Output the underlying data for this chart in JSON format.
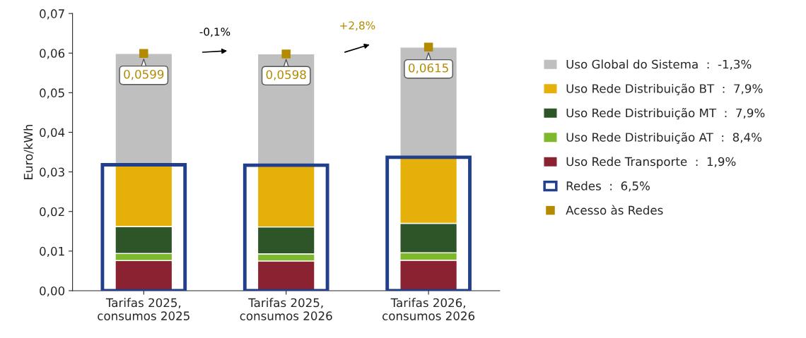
{
  "chart_data": [
    {
      "type": "bar",
      "stacked": true,
      "ylabel": "Euro/kWh",
      "categories": [
        "Tarifas 2025,\nconsumos 2025",
        "Tarifas 2025,\nconsumos 2026",
        "Tarifas 2026,\nconsumos 2026"
      ],
      "series": [
        {
          "name": "Uso Rede Transporte  :  1,9%",
          "color": "#8a2232",
          "values": [
            0.0076,
            0.0075,
            0.0077
          ]
        },
        {
          "name": "Uso Rede Distribuição AT  :  8,4%",
          "color": "#7eb82c",
          "values": [
            0.0018,
            0.0018,
            0.0019
          ]
        },
        {
          "name": "Uso Rede Distribuição MT  :  7,9%",
          "color": "#2d5527",
          "values": [
            0.0068,
            0.0068,
            0.0074
          ]
        },
        {
          "name": "Uso Rede Distribuição BT  :  7,9%",
          "color": "#e6b00a",
          "values": [
            0.0156,
            0.0156,
            0.0167
          ]
        },
        {
          "name": "Uso Global do Sistema  :  -1,3%",
          "color": "#bfbfbf",
          "values": [
            0.0281,
            0.0281,
            0.0278
          ]
        },
        {
          "name": "Acesso às Redes",
          "type": "scatter",
          "marker": "square",
          "color": "#b38a00",
          "values": [
            0.0599,
            0.0598,
            0.0615
          ],
          "value_labels": [
            "0,0599",
            "0,0598",
            "0,0615"
          ]
        }
      ],
      "annotations": [
        "-0,1%",
        "+2,8%"
      ],
      "ylim": [
        0,
        0.07
      ],
      "yticks": [
        {
          "value": 0,
          "label": "0,00"
        },
        {
          "value": 0.01,
          "label": "0,01"
        },
        {
          "value": 0.02,
          "label": "0,02"
        },
        {
          "value": 0.03,
          "label": "0,03"
        },
        {
          "value": 0.04,
          "label": "0,04"
        },
        {
          "value": 0.05,
          "label": "0,05"
        },
        {
          "value": 0.06,
          "label": "0,06"
        },
        {
          "value": 0.07,
          "label": "0,07"
        }
      ],
      "grid": false,
      "legend": "right"
    },
    {
      "type": "bar",
      "categories": [
        null,
        null,
        null
      ],
      "series": [
        {
          "name": "Redes  :  6,5%",
          "color": "#213f8a",
          "values": [
            0.0318,
            0.0317,
            0.0337
          ]
        }
      ],
      "ylim": [
        0,
        0.07
      ],
      "tick_labels": false,
      "legend": "right"
    }
  ]
}
